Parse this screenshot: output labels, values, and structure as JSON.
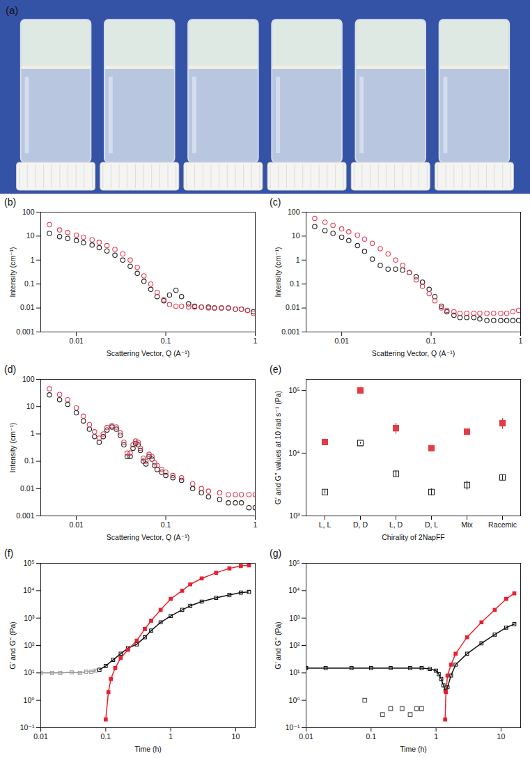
{
  "image": {
    "panel": "(a)",
    "vials": 6
  },
  "chart_data": [
    {
      "panel": "(b)",
      "type": "scatter",
      "log": true,
      "x_label": "Scattering Vector, Q (A⁻¹)",
      "y_label": "Intensity (cm⁻¹)",
      "xlim": [
        0.004,
        1
      ],
      "ylim": [
        0.001,
        100
      ],
      "xticks": [
        0.01,
        0.1,
        1
      ],
      "yticks": [
        0.001,
        0.01,
        0.1,
        1,
        10,
        100
      ],
      "x": [
        0.005,
        0.0065,
        0.008,
        0.01,
        0.012,
        0.015,
        0.018,
        0.022,
        0.027,
        0.033,
        0.04,
        0.048,
        0.057,
        0.068,
        0.08,
        0.095,
        0.11,
        0.13,
        0.15,
        0.18,
        0.21,
        0.25,
        0.3,
        0.35,
        0.42,
        0.5,
        0.6,
        0.7,
        0.82,
        0.95
      ],
      "series": [
        {
          "color": "#222222",
          "marker": "circle-open",
          "values": [
            13,
            9.5,
            8,
            6.5,
            5.3,
            4.2,
            3.3,
            2.4,
            1.6,
            1.0,
            0.55,
            0.28,
            0.13,
            0.06,
            0.03,
            0.02,
            0.035,
            0.055,
            0.03,
            0.015,
            0.012,
            0.011,
            0.011,
            0.01,
            0.01,
            0.01,
            0.009,
            0.009,
            0.008,
            0.007
          ]
        },
        {
          "color": "#e23c55",
          "marker": "circle-open",
          "values": [
            30,
            18,
            14,
            11,
            9,
            7,
            5.5,
            4,
            2.8,
            1.8,
            1.0,
            0.5,
            0.22,
            0.1,
            0.045,
            0.022,
            0.014,
            0.012,
            0.012,
            0.011,
            0.011,
            0.011,
            0.01,
            0.01,
            0.01,
            0.01,
            0.009,
            0.009,
            0.008,
            0.006
          ]
        }
      ]
    },
    {
      "panel": "(c)",
      "type": "scatter",
      "log": true,
      "x_label": "Scattering Vector, Q (A⁻¹)",
      "y_label": "Intensity (cm⁻¹)",
      "xlim": [
        0.004,
        1
      ],
      "ylim": [
        0.001,
        100
      ],
      "xticks": [
        0.01,
        0.1,
        1
      ],
      "yticks": [
        0.001,
        0.01,
        0.1,
        1,
        10,
        100
      ],
      "x": [
        0.005,
        0.0065,
        0.008,
        0.01,
        0.012,
        0.015,
        0.018,
        0.022,
        0.027,
        0.033,
        0.04,
        0.048,
        0.057,
        0.068,
        0.08,
        0.095,
        0.11,
        0.13,
        0.15,
        0.18,
        0.21,
        0.25,
        0.3,
        0.35,
        0.42,
        0.5,
        0.6,
        0.7,
        0.82,
        0.95
      ],
      "series": [
        {
          "color": "#222222",
          "marker": "circle-open",
          "values": [
            25,
            17,
            13,
            9,
            6.5,
            4,
            2.3,
            1.1,
            0.6,
            0.42,
            0.42,
            0.38,
            0.3,
            0.2,
            0.12,
            0.06,
            0.03,
            0.012,
            0.007,
            0.005,
            0.004,
            0.004,
            0.004,
            0.0035,
            0.003,
            0.003,
            0.003,
            0.003,
            0.003,
            0.003
          ]
        },
        {
          "color": "#e23c55",
          "marker": "circle-open",
          "values": [
            55,
            38,
            28,
            20,
            15,
            11,
            7.5,
            5,
            3,
            1.8,
            1.0,
            0.6,
            0.3,
            0.15,
            0.08,
            0.04,
            0.02,
            0.01,
            0.008,
            0.007,
            0.006,
            0.006,
            0.006,
            0.006,
            0.006,
            0.006,
            0.006,
            0.006,
            0.007,
            0.008
          ]
        }
      ]
    },
    {
      "panel": "(d)",
      "type": "scatter",
      "log": true,
      "x_label": "Scattering Vector, Q (A⁻¹)",
      "y_label": "Intensity (cm⁻¹)",
      "xlim": [
        0.004,
        1
      ],
      "ylim": [
        0.001,
        100
      ],
      "xticks": [
        0.01,
        0.1,
        1
      ],
      "yticks": [
        0.001,
        0.01,
        0.1,
        1,
        10,
        100
      ],
      "x": [
        0.005,
        0.0065,
        0.008,
        0.01,
        0.012,
        0.014,
        0.016,
        0.018,
        0.02,
        0.022,
        0.025,
        0.028,
        0.031,
        0.034,
        0.037,
        0.04,
        0.043,
        0.046,
        0.049,
        0.052,
        0.056,
        0.06,
        0.065,
        0.07,
        0.075,
        0.08,
        0.09,
        0.1,
        0.12,
        0.15,
        0.2,
        0.25,
        0.3,
        0.4,
        0.5,
        0.6,
        0.7,
        0.85,
        1.0
      ],
      "series": [
        {
          "color": "#222222",
          "marker": "circle-open",
          "values": [
            27,
            18,
            12,
            6,
            3,
            1.5,
            0.8,
            0.5,
            0.8,
            1.4,
            1.8,
            1.5,
            0.9,
            0.4,
            0.15,
            0.15,
            0.3,
            0.45,
            0.4,
            0.25,
            0.1,
            0.08,
            0.15,
            0.12,
            0.07,
            0.05,
            0.04,
            0.03,
            0.025,
            0.02,
            0.01,
            0.007,
            0.005,
            0.004,
            0.003,
            0.003,
            0.003,
            0.002,
            0.002
          ]
        },
        {
          "color": "#e23c55",
          "marker": "circle-open",
          "values": [
            45,
            28,
            18,
            9,
            4.5,
            2.2,
            1.2,
            0.7,
            1.0,
            1.7,
            2.0,
            1.8,
            1.1,
            0.5,
            0.2,
            0.2,
            0.4,
            0.55,
            0.5,
            0.3,
            0.13,
            0.1,
            0.18,
            0.15,
            0.09,
            0.07,
            0.05,
            0.04,
            0.03,
            0.025,
            0.015,
            0.01,
            0.008,
            0.007,
            0.006,
            0.006,
            0.006,
            0.006,
            0.006
          ]
        }
      ]
    },
    {
      "panel": "(e)",
      "type": "scatter",
      "log": "y",
      "x_label": "Chirality of 2NapFF",
      "y_label": "G' and G'' values at 10 rad s⁻¹ (Pa)",
      "categories": [
        "L, L",
        "D, D",
        "L, D",
        "D, L",
        "Mix",
        "Racemic"
      ],
      "ylim": [
        1000,
        150000
      ],
      "yticks": [
        {
          "value": 1000,
          "label": "10³"
        },
        {
          "value": 10000,
          "label": "10⁴"
        },
        {
          "value": 100000,
          "label": "10⁵"
        }
      ],
      "series": [
        {
          "color": "#e23c45",
          "marker": "square",
          "values": [
            15000,
            100000,
            25000,
            12000,
            22000,
            30000
          ],
          "errors": [
            800,
            12000,
            5000,
            1000,
            2000,
            6000
          ]
        },
        {
          "color": "#222222",
          "marker": "square-open",
          "values": [
            2400,
            14500,
            4700,
            2400,
            3100,
            4100
          ],
          "errors": [
            150,
            500,
            500,
            300,
            500,
            400
          ]
        }
      ]
    },
    {
      "panel": "(f)",
      "type": "line",
      "log": true,
      "x_label": "Time (h)",
      "y_label": "G' and G'' (Pa)",
      "xlim": [
        0.01,
        20
      ],
      "ylim": [
        0.1,
        100000
      ],
      "xticks": [
        0.01,
        0.1,
        1,
        10
      ],
      "yticks": [
        {
          "value": 0.1,
          "label": "10⁻¹"
        },
        {
          "value": 1,
          "label": "10⁰"
        },
        {
          "value": 10,
          "label": "10¹"
        },
        {
          "value": 100,
          "label": "10²"
        },
        {
          "value": 1000,
          "label": "10³"
        },
        {
          "value": 10000,
          "label": "10⁴"
        },
        {
          "value": 100000,
          "label": "10⁵"
        }
      ],
      "series": [
        {
          "color": "#9a9a9a",
          "marker": "square-open",
          "x": [
            0.01,
            0.015,
            0.02,
            0.03,
            0.04,
            0.05,
            0.06,
            0.07
          ],
          "values": [
            10,
            10,
            10,
            10.5,
            10,
            11,
            11,
            12
          ]
        },
        {
          "color": "#111111",
          "marker": "square-open",
          "x": [
            0.08,
            0.1,
            0.13,
            0.17,
            0.22,
            0.3,
            0.4,
            0.5,
            0.7,
            1,
            1.5,
            2,
            3,
            5,
            8,
            12,
            16
          ],
          "values": [
            13,
            18,
            30,
            50,
            80,
            110,
            200,
            350,
            700,
            1200,
            2000,
            2800,
            4000,
            5500,
            7000,
            8500,
            9000
          ]
        },
        {
          "color": "#e8202e",
          "marker": "square",
          "x": [
            0.1,
            0.11,
            0.12,
            0.14,
            0.17,
            0.22,
            0.3,
            0.4,
            0.5,
            0.7,
            1,
            1.5,
            2,
            3,
            5,
            8,
            12,
            16
          ],
          "values": [
            0.2,
            2,
            6,
            15,
            35,
            70,
            150,
            400,
            800,
            2000,
            5000,
            10000,
            17000,
            28000,
            45000,
            65000,
            80000,
            85000
          ]
        }
      ]
    },
    {
      "panel": "(g)",
      "type": "line",
      "log": true,
      "x_label": "Time (h)",
      "y_label": "G' and G'' (Pa)",
      "xlim": [
        0.01,
        20
      ],
      "ylim": [
        0.1,
        100000
      ],
      "xticks": [
        0.01,
        0.1,
        1,
        10
      ],
      "yticks": [
        {
          "value": 0.1,
          "label": "10⁻¹"
        },
        {
          "value": 1,
          "label": "10⁰"
        },
        {
          "value": 10,
          "label": "10¹"
        },
        {
          "value": 100,
          "label": "10²"
        },
        {
          "value": 1000,
          "label": "10³"
        },
        {
          "value": 10000,
          "label": "10⁴"
        },
        {
          "value": 100000,
          "label": "10⁵"
        }
      ],
      "series": [
        {
          "color": "#111111",
          "marker": "square-open",
          "x": [
            0.01,
            0.02,
            0.05,
            0.1,
            0.2,
            0.4,
            0.6,
            0.8,
            1.0,
            1.1,
            1.2,
            1.3,
            1.4,
            1.5,
            1.7,
            2,
            3,
            5,
            8,
            12,
            16
          ],
          "values": [
            15,
            15,
            15,
            15,
            15,
            15,
            15,
            14,
            12,
            9,
            6,
            3.5,
            2.2,
            3,
            8,
            20,
            50,
            120,
            250,
            450,
            600
          ]
        },
        {
          "color": "#555555",
          "marker": "square-open",
          "type": "scatter",
          "x": [
            0.08,
            0.15,
            0.2,
            0.3,
            0.4,
            0.5,
            0.6
          ],
          "values": [
            1,
            0.3,
            0.5,
            0.5,
            0.3,
            0.5,
            0.5
          ]
        },
        {
          "color": "#e8202e",
          "marker": "square",
          "x": [
            1.38,
            1.42,
            1.5,
            1.7,
            2,
            3,
            5,
            8,
            12,
            16
          ],
          "values": [
            0.2,
            2,
            8,
            20,
            50,
            200,
            700,
            2000,
            5000,
            8000
          ]
        }
      ]
    }
  ]
}
